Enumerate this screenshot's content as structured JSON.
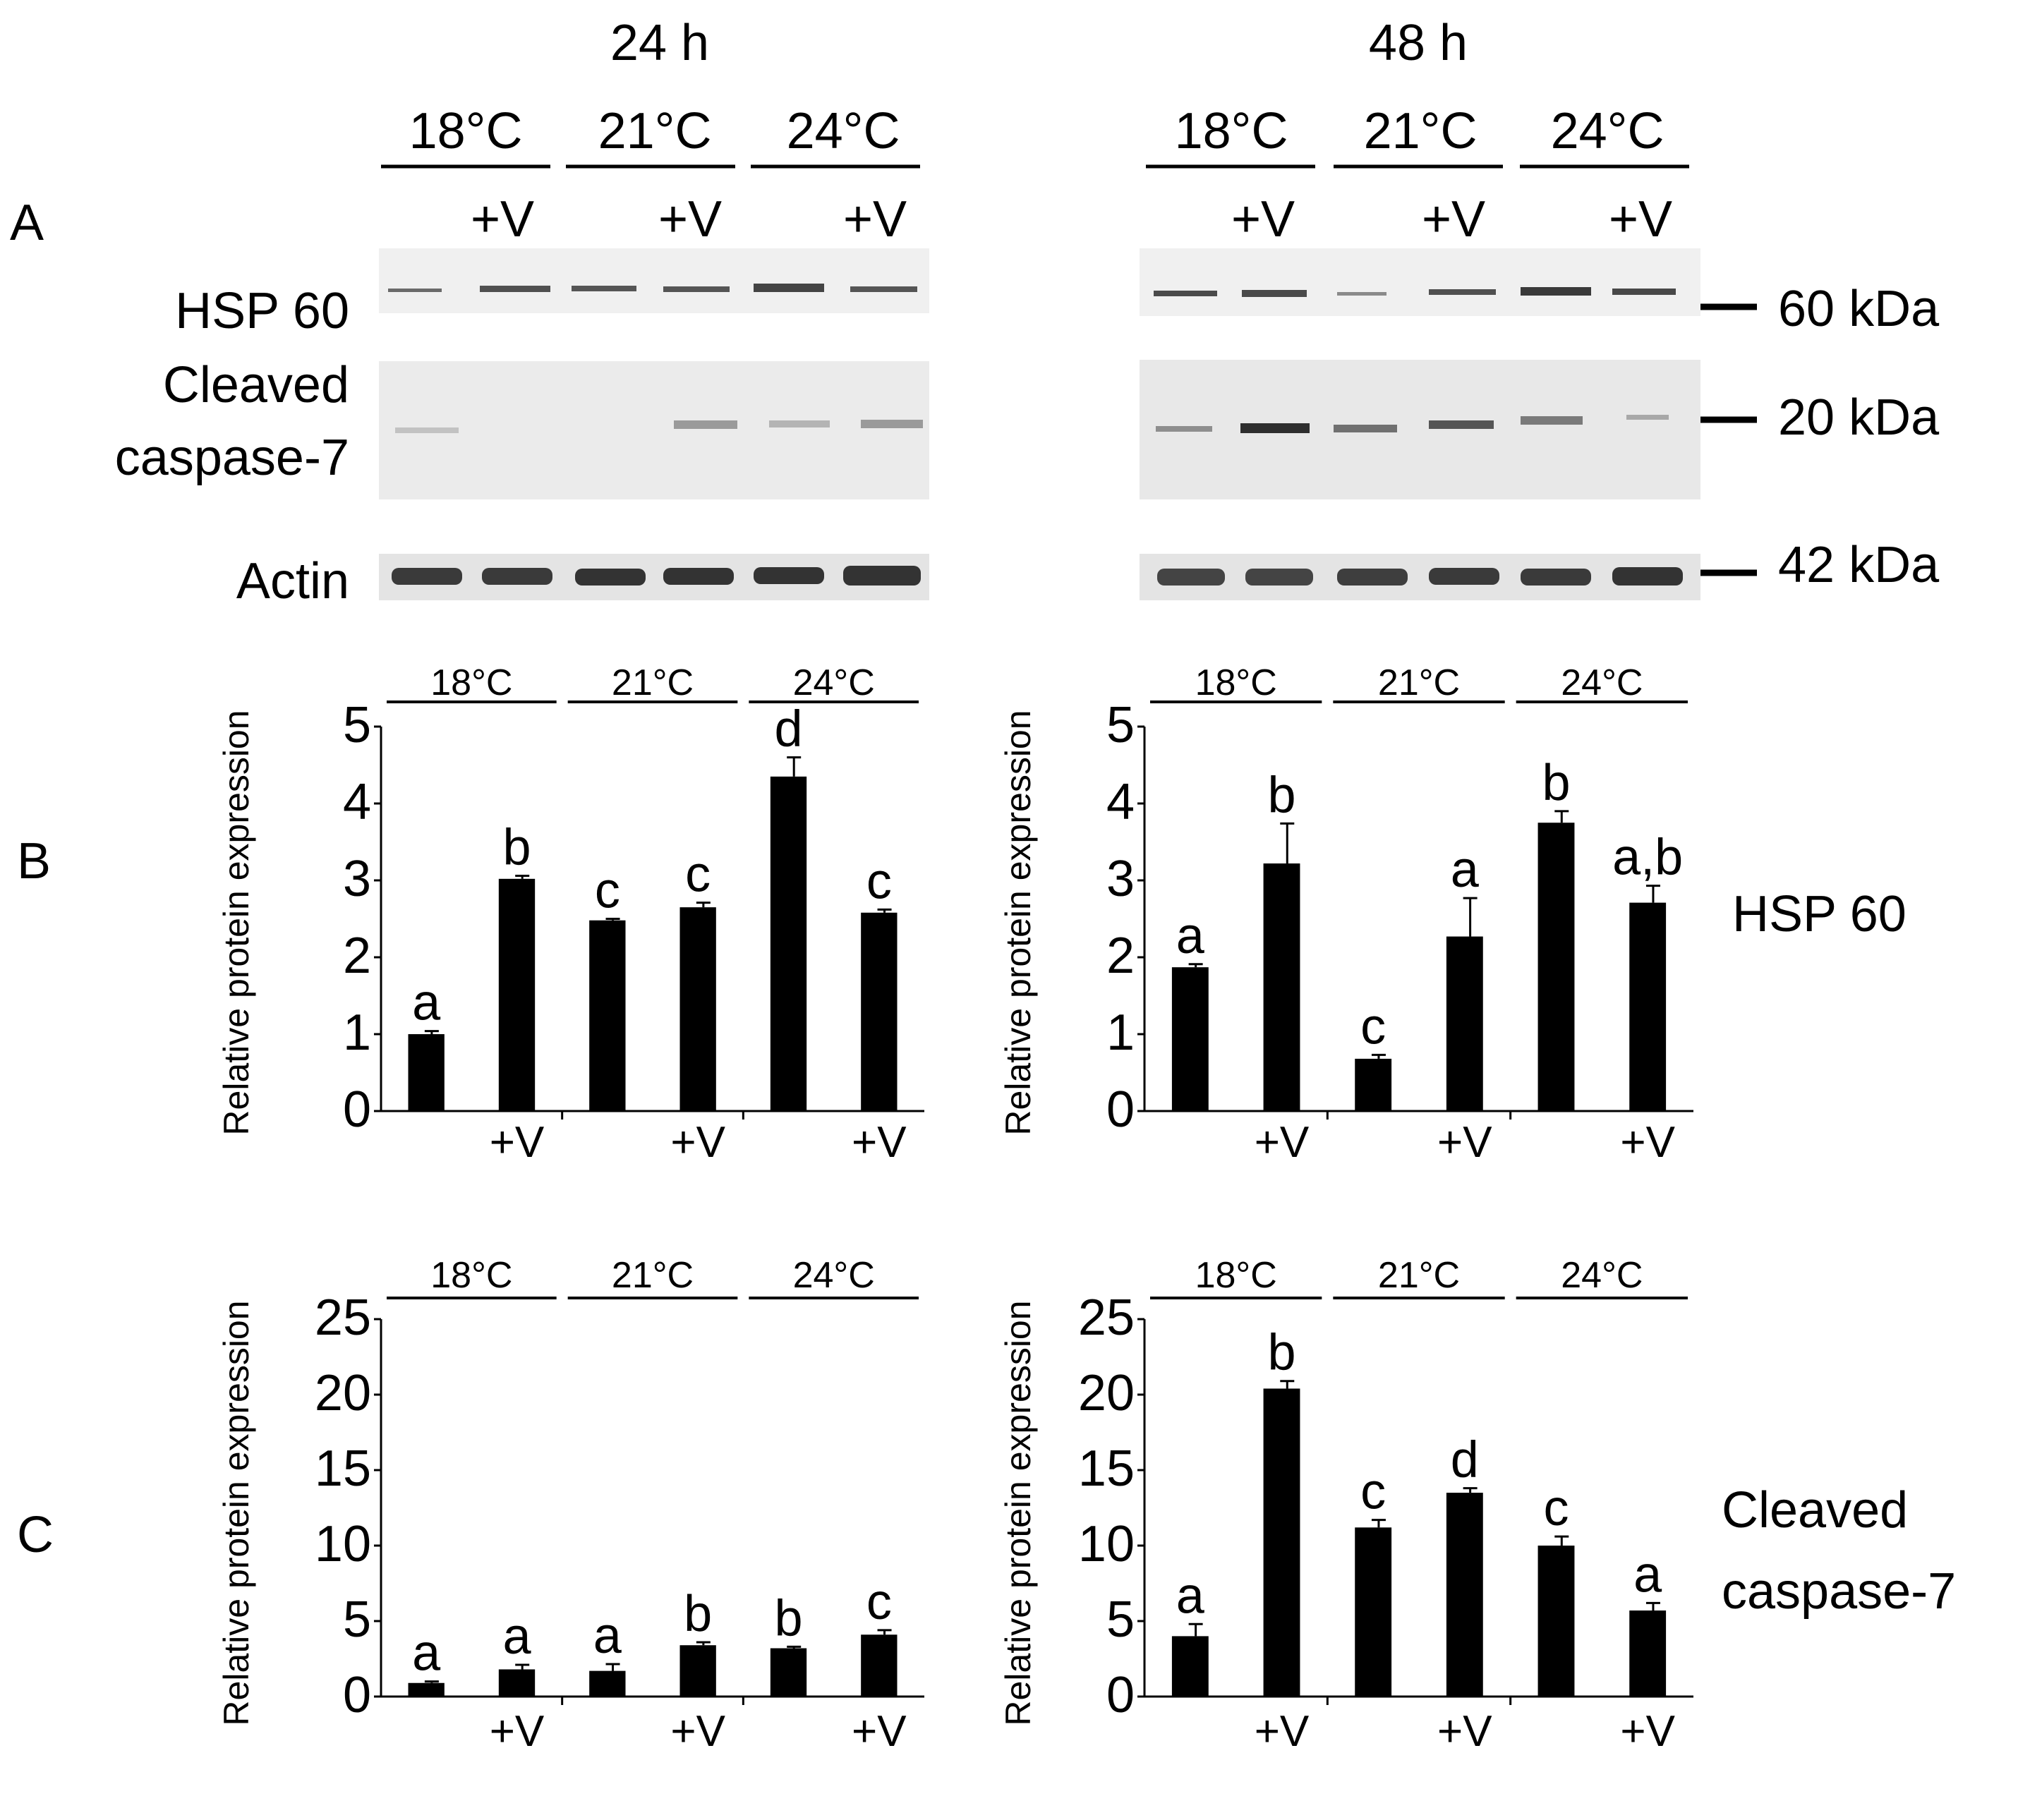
{
  "panels": {
    "A": "A",
    "B": "B",
    "C": "C"
  },
  "time_points": [
    "24 h",
    "48 h"
  ],
  "temperatures": [
    "18°C",
    "21°C",
    "24°C"
  ],
  "treatment_label": "+V",
  "blot": {
    "row_labels": {
      "hsp60": "HSP 60",
      "caspase_line1": "Cleaved",
      "caspase_line2": "caspase-7",
      "actin": "Actin"
    },
    "markers": [
      "60 kDa",
      "20 kDa",
      "42 kDa"
    ]
  },
  "side_labels": {
    "hsp60": "HSP 60",
    "caspase_line1": "Cleaved",
    "caspase_line2": "caspase-7"
  },
  "chart_data": [
    {
      "type": "bar",
      "panel": "B",
      "time": "24 h",
      "protein": "HSP 60",
      "categories": [
        "18°C",
        "18°C +V",
        "21°C",
        "21°C +V",
        "24°C",
        "24°C +V"
      ],
      "values": [
        1.0,
        3.02,
        2.48,
        2.65,
        4.35,
        2.58
      ],
      "errors": [
        0.04,
        0.04,
        0.02,
        0.06,
        0.25,
        0.04
      ],
      "letters": [
        "a",
        "b",
        "c",
        "c",
        "d",
        "c"
      ],
      "ylabel": "Relative protein expression",
      "ylim": [
        0,
        5
      ],
      "yticks": [
        0,
        1,
        2,
        3,
        4,
        5
      ]
    },
    {
      "type": "bar",
      "panel": "B",
      "time": "48 h",
      "protein": "HSP 60",
      "categories": [
        "18°C",
        "18°C +V",
        "21°C",
        "21°C +V",
        "24°C",
        "24°C +V"
      ],
      "values": [
        1.87,
        3.22,
        0.68,
        2.27,
        3.75,
        2.71
      ],
      "errors": [
        0.04,
        0.52,
        0.05,
        0.5,
        0.15,
        0.22
      ],
      "letters": [
        "a",
        "b",
        "c",
        "a",
        "b",
        "a,b"
      ],
      "ylabel": "Relative protein expression",
      "ylim": [
        0,
        5
      ],
      "yticks": [
        0,
        1,
        2,
        3,
        4,
        5
      ]
    },
    {
      "type": "bar",
      "panel": "C",
      "time": "24 h",
      "protein": "Cleaved caspase-7",
      "categories": [
        "18°C",
        "18°C +V",
        "21°C",
        "21°C +V",
        "24°C",
        "24°C +V"
      ],
      "values": [
        0.9,
        1.8,
        1.7,
        3.4,
        3.2,
        4.1
      ],
      "errors": [
        0.1,
        0.3,
        0.45,
        0.2,
        0.1,
        0.3
      ],
      "letters": [
        "a",
        "a",
        "a",
        "b",
        "b",
        "c"
      ],
      "ylabel": "Relative protein expression",
      "ylim": [
        0,
        25
      ],
      "yticks": [
        0,
        5,
        10,
        15,
        20,
        25
      ]
    },
    {
      "type": "bar",
      "panel": "C",
      "time": "48 h",
      "protein": "Cleaved caspase-7",
      "categories": [
        "18°C",
        "18°C +V",
        "21°C",
        "21°C +V",
        "24°C",
        "24°C +V"
      ],
      "values": [
        4.0,
        20.4,
        11.2,
        13.5,
        10.0,
        5.7
      ],
      "errors": [
        0.8,
        0.5,
        0.5,
        0.3,
        0.6,
        0.5
      ],
      "letters": [
        "a",
        "b",
        "c",
        "d",
        "c",
        "a"
      ],
      "ylabel": "Relative protein expression",
      "ylim": [
        0,
        25
      ],
      "yticks": [
        0,
        5,
        10,
        15,
        20,
        25
      ]
    }
  ],
  "colors": {
    "bar": "#000000",
    "axis": "#000000",
    "blot_background": "#eeeeee",
    "band": "#3a3a3a"
  }
}
